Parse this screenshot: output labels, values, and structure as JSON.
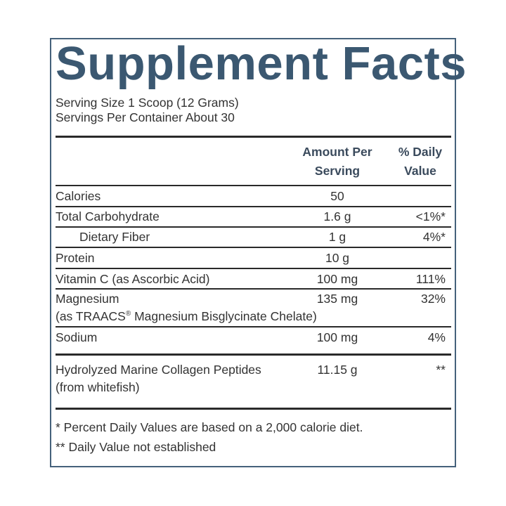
{
  "title": "Supplement Facts",
  "serving_size": "Serving Size 1 Scoop (12 Grams)",
  "servings_per_container": "Servings Per Container About 30",
  "header": {
    "amount": "Amount Per Serving",
    "daily_value": "% Daily Value"
  },
  "rows": [
    {
      "name": "Calories",
      "amount": "50"
    },
    {
      "name": "Total Carbohydrate",
      "amount": "1.6 g",
      "daily_value": "<1%*"
    },
    {
      "name": "Dietary Fiber",
      "amount": "1 g",
      "daily_value": "4%*"
    },
    {
      "name": "Protein",
      "amount": "10 g"
    },
    {
      "name": "Vitamin C (as Ascorbic Acid)",
      "amount": "100 mg",
      "daily_value": "111%"
    },
    {
      "name": "Magnesium",
      "amount": "135 mg",
      "daily_value": "32%",
      "detail": [
        "(as TRAACS",
        "®",
        " Magnesium Bisglycinate Chelate)"
      ]
    },
    {
      "name": "Sodium",
      "amount": "100 mg",
      "daily_value": "4%"
    },
    {
      "name": "Hydrolyzed Marine Collagen Peptides",
      "amount": "11.15 g",
      "daily_value": "**",
      "detail": [
        "(from whitefish)"
      ]
    }
  ],
  "footnotes": [
    "* Percent Daily Values are based on a 2,000 calorie diet.",
    "** Daily Value not established"
  ]
}
